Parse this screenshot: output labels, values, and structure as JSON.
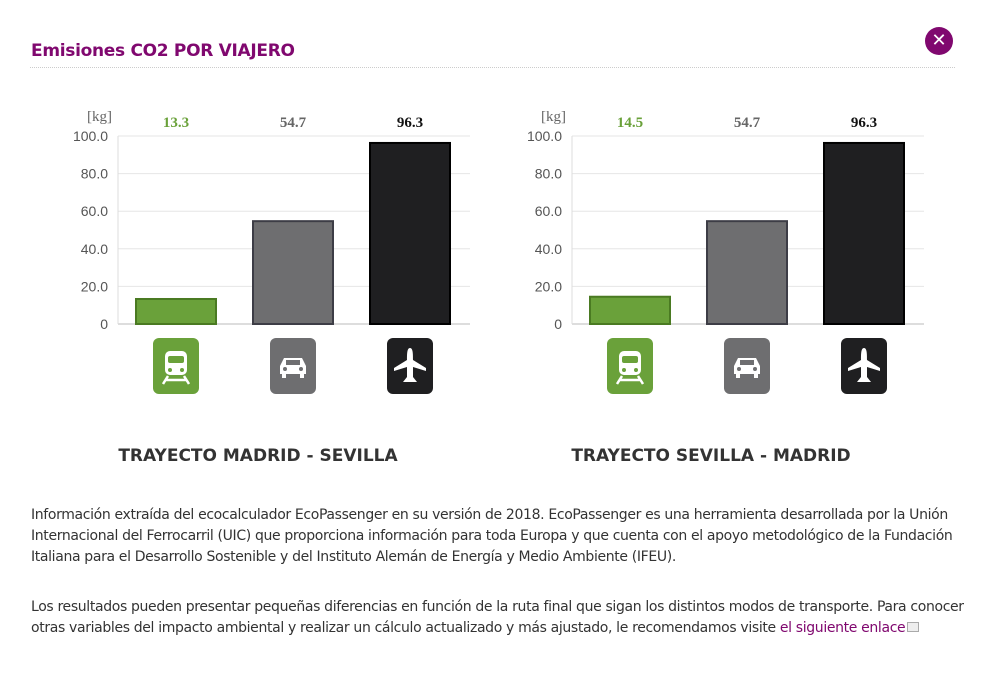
{
  "header": {
    "title": "Emisiones CO2 POR VIAJERO",
    "close_icon": "close-icon"
  },
  "colors": {
    "accent": "#80086f",
    "train": "#6aa13a",
    "car": "#6e6e70",
    "plane": "#1f1f21"
  },
  "chart_data": [
    {
      "type": "bar",
      "unit_label": "[kg]",
      "categories": [
        "train",
        "car",
        "plane"
      ],
      "values": [
        13.3,
        54.7,
        96.3
      ],
      "value_labels": [
        "13.3",
        "54.7",
        "96.3"
      ],
      "ylim": [
        0,
        100
      ],
      "yticks": [
        "0",
        "20.0",
        "40.0",
        "60.0",
        "80.0",
        "100.0"
      ],
      "grid": true,
      "route": "TRAYECTO MADRID - SEVILLA"
    },
    {
      "type": "bar",
      "unit_label": "[kg]",
      "categories": [
        "train",
        "car",
        "plane"
      ],
      "values": [
        14.5,
        54.7,
        96.3
      ],
      "value_labels": [
        "14.5",
        "54.7",
        "96.3"
      ],
      "ylim": [
        0,
        100
      ],
      "yticks": [
        "0",
        "20.0",
        "40.0",
        "60.0",
        "80.0",
        "100.0"
      ],
      "grid": true,
      "route": "TRAYECTO SEVILLA - MADRID"
    }
  ],
  "info": {
    "p1": "Información extraída del ecocalculador EcoPassenger en su versión de 2018. EcoPassenger es una herramienta desarrollada por la Unión Internacional del Ferrocarril (UIC) que proporciona información para toda Europa y que cuenta con el apoyo metodológico de la Fundación Italiana para el Desarrollo Sostenible y del Instituto Alemán de Energía y Medio Ambiente (IFEU).",
    "p2": "Los resultados pueden presentar pequeñas diferencias en función de la ruta final que sigan los distintos modos de transporte. Para conocer otras variables del impacto ambiental y realizar un cálculo actualizado y más ajustado, le recomendamos visite ",
    "link": "el siguiente enlace"
  }
}
